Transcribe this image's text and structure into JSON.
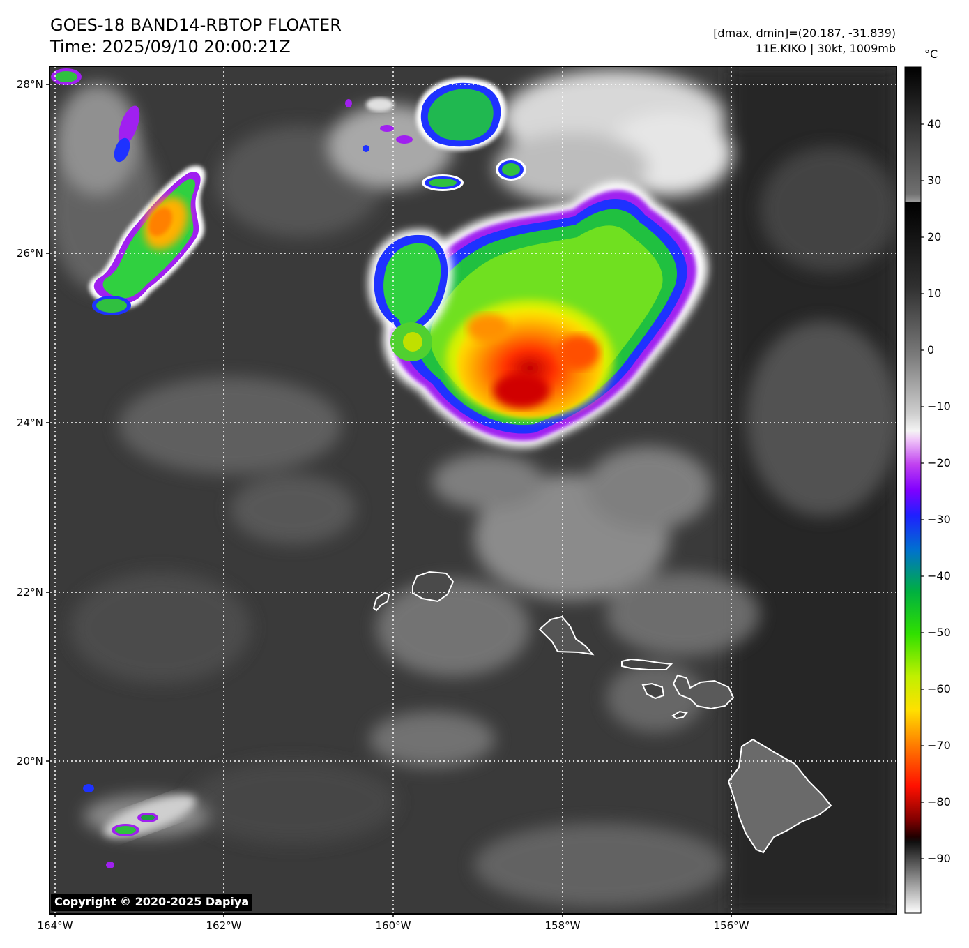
{
  "header": {
    "title_line1": "GOES-18 BAND14-RBTOP FLOATER",
    "title_line2": "Time: 2025/09/10 20:00:21Z",
    "info_line1": "[dmax, dmin]=(20.187, -31.839)",
    "info_line2": "11E.KIKO | 30kt, 1009mb"
  },
  "map": {
    "lat_labels": [
      "28°N",
      "26°N",
      "24°N",
      "22°N",
      "20°N"
    ],
    "lon_labels": [
      "164°W",
      "162°W",
      "160°W",
      "158°W",
      "156°W"
    ],
    "copyright": "Copyright © 2020-2025 Dapiya",
    "islands": [
      "Niihau",
      "Kauai",
      "Oahu",
      "Molokai",
      "Lanai",
      "Kahoolawe",
      "Maui",
      "Hawaii"
    ]
  },
  "colorbar": {
    "unit": "°C",
    "tick_labels": [
      "40",
      "30",
      "20",
      "10",
      "0",
      "−10",
      "−20",
      "−30",
      "−40",
      "−50",
      "−60",
      "−70",
      "−80",
      "−90"
    ],
    "range": [
      -100,
      50
    ],
    "colors": {
      "warm": "#000000",
      "cloud_white": "#f5f5f5",
      "purple": "#a020f0",
      "blue": "#1e32ff",
      "green": "#30e030",
      "yellow": "#f8f800",
      "orange": "#ff8000",
      "red": "#e01000",
      "dark_red": "#300000"
    }
  }
}
